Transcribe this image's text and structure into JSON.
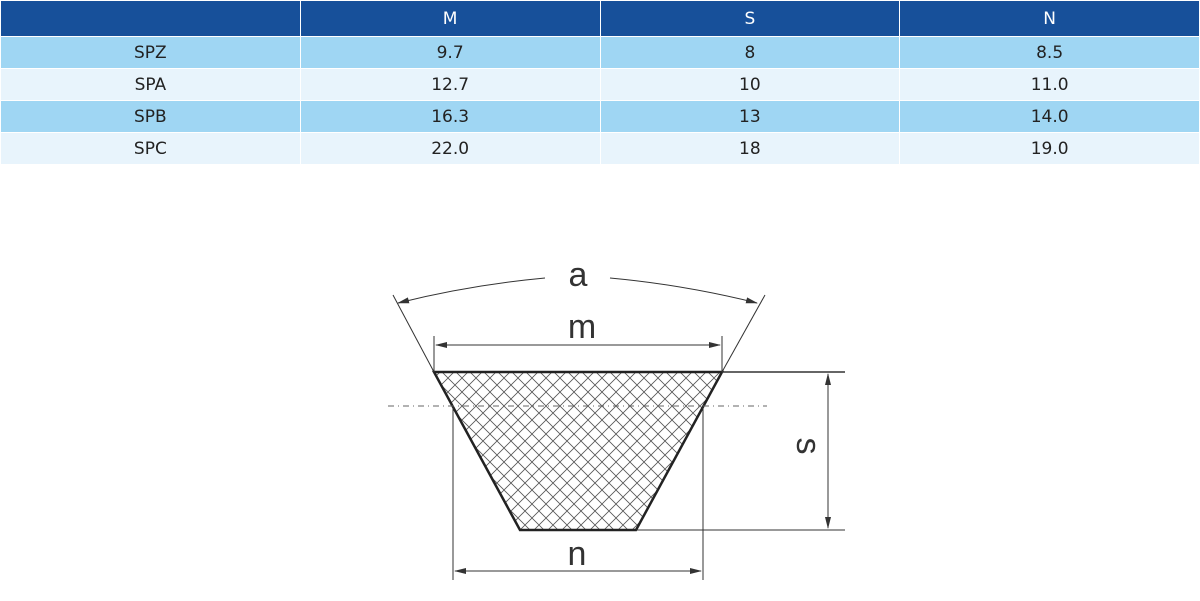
{
  "table": {
    "headers": [
      "",
      "M",
      "S",
      "N"
    ],
    "rows": [
      [
        "SPZ",
        "9.7",
        "8",
        "8.5"
      ],
      [
        "SPA",
        "12.7",
        "10",
        "11.0"
      ],
      [
        "SPB",
        "16.3",
        "13",
        "14.0"
      ],
      [
        "SPC",
        "22.0",
        "18",
        "19.0"
      ]
    ]
  },
  "diagram": {
    "labels": {
      "a": "a",
      "m": "m",
      "s": "s",
      "n": "n"
    }
  },
  "colors": {
    "header": "#17509a",
    "row_odd": "#9fd6f3",
    "row_even": "#e8f4fc"
  }
}
